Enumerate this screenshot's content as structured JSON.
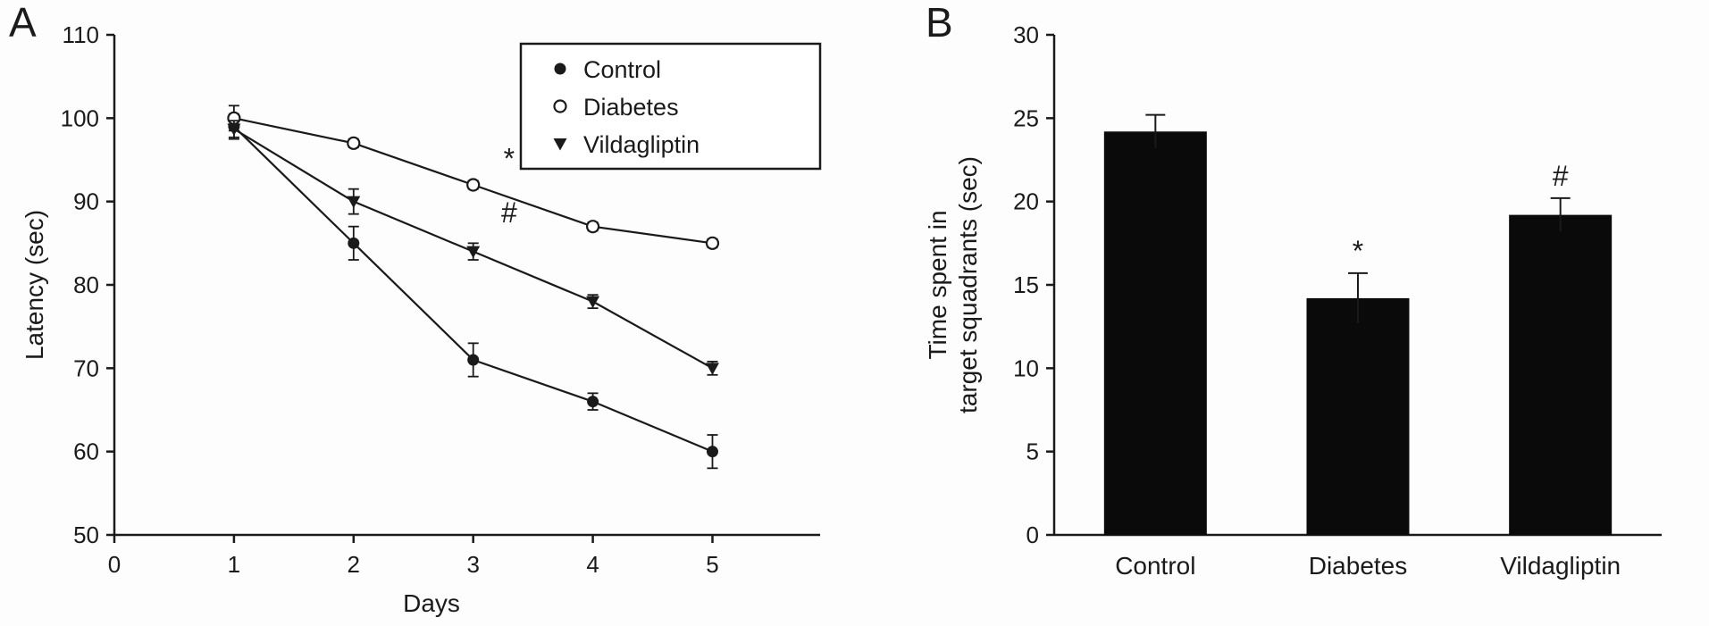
{
  "figure": {
    "panel_a_label": "A",
    "panel_b_label": "B"
  },
  "chart_data": [
    {
      "type": "line",
      "panel": "A",
      "title": "",
      "xlabel": "Days",
      "ylabel": "Latency (sec)",
      "xlim": [
        0,
        5.9
      ],
      "ylim": [
        50,
        110
      ],
      "xticks": [
        0,
        1,
        2,
        3,
        4,
        5
      ],
      "yticks": [
        50,
        60,
        70,
        80,
        90,
        100,
        110
      ],
      "grid": false,
      "legend_position": "top-right-inside-box",
      "x": [
        1,
        2,
        3,
        4,
        5
      ],
      "series": [
        {
          "name": "Control",
          "marker": "filled-circle",
          "values": [
            99,
            85,
            71,
            66,
            60
          ],
          "errors": [
            1.5,
            2,
            2,
            1,
            2
          ]
        },
        {
          "name": "Diabetes",
          "marker": "open-circle",
          "values": [
            100,
            97,
            92,
            87,
            85
          ],
          "errors": [
            1.5,
            0.5,
            0.5,
            0.5,
            0.5
          ]
        },
        {
          "name": "Vildagliptin",
          "marker": "filled-triangle-down",
          "values": [
            98.7,
            90,
            84,
            78,
            70
          ],
          "errors": [
            1,
            1.5,
            1,
            0.8,
            0.8
          ]
        }
      ],
      "annotations": [
        {
          "text": "*",
          "x": 3.3,
          "y": 94
        },
        {
          "text": "#",
          "x": 3.3,
          "y": 87.5
        }
      ],
      "ink_color": "#1a1a1a"
    },
    {
      "type": "bar",
      "panel": "B",
      "title": "",
      "xlabel": "",
      "ylabel": "Time spent in target squadrants (sec)",
      "ylabel_lines": [
        "Time spent in",
        "target squadrants (sec)"
      ],
      "ylim": [
        0,
        30
      ],
      "yticks": [
        0,
        5,
        10,
        15,
        20,
        25,
        30
      ],
      "grid": false,
      "categories": [
        "Control",
        "Diabetes",
        "Vildagliptin"
      ],
      "values": [
        24.2,
        14.2,
        19.2
      ],
      "errors": [
        1.0,
        1.5,
        1.0
      ],
      "annotations": [
        {
          "text": "*",
          "category": "Diabetes"
        },
        {
          "text": "#",
          "category": "Vildagliptin"
        }
      ],
      "bar_color": "#0a0a0a",
      "ink_color": "#1a1a1a"
    }
  ]
}
